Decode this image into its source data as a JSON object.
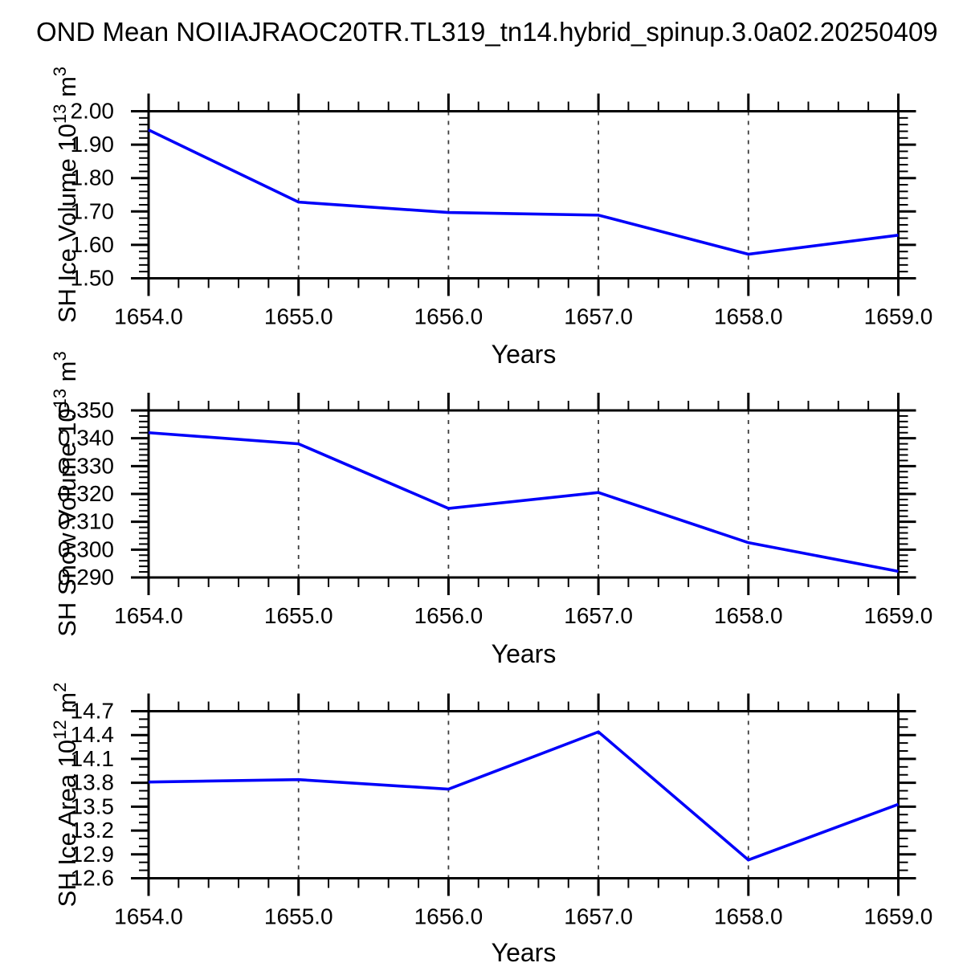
{
  "title": "OND Mean NOIIAJRAOC20TR.TL319_tn14.hybrid_spinup.3.0a02.20250409",
  "xlabel": "Years",
  "colors": {
    "background": "#ffffff",
    "axis": "#000000",
    "grid_dashed": "#3d3d3d",
    "line": "#0000fa"
  },
  "chart_data": [
    {
      "type": "line",
      "title": "",
      "series_name": "SH Ice Volume",
      "ylabel": "SH Ice Volume 10^13 m^3",
      "ylabel_parts": [
        "SH Ice Volume 10",
        "13",
        " m",
        "3"
      ],
      "xlabel": "Years",
      "x": [
        1654.0,
        1655.0,
        1656.0,
        1657.0,
        1658.0,
        1659.0
      ],
      "values": [
        1.944,
        1.728,
        1.697,
        1.689,
        1.572,
        1.629
      ],
      "xlim": [
        1654.0,
        1659.0
      ],
      "ylim": [
        1.5,
        2.0
      ],
      "xmajor": 1.0,
      "xminor": 0.2,
      "ymajor": 0.1,
      "yminor": 0.02,
      "xtick_labels": [
        "1654.0",
        "1655.0",
        "1656.0",
        "1657.0",
        "1658.0",
        "1659.0"
      ],
      "ytick_labels": [
        "2.00",
        "1.90",
        "1.80",
        "1.70",
        "1.60",
        "1.50"
      ],
      "grid": "vertical dashed lines at interior major x ticks",
      "legend": "none"
    },
    {
      "type": "line",
      "title": "",
      "series_name": "SH Snow Volume",
      "ylabel": "SH Snow Volume 10^13 m^3",
      "ylabel_parts": [
        "SH Snow Volume 10",
        "13",
        " m",
        "3"
      ],
      "xlabel": "Years",
      "x": [
        1654.0,
        1655.0,
        1656.0,
        1657.0,
        1658.0,
        1659.0
      ],
      "values": [
        0.342,
        0.338,
        0.3148,
        0.3205,
        0.3025,
        0.2922
      ],
      "xlim": [
        1654.0,
        1659.0
      ],
      "ylim": [
        0.29,
        0.35
      ],
      "xmajor": 1.0,
      "xminor": 0.2,
      "ymajor": 0.01,
      "yminor": 0.002,
      "xtick_labels": [
        "1654.0",
        "1655.0",
        "1656.0",
        "1657.0",
        "1658.0",
        "1659.0"
      ],
      "ytick_labels": [
        "0.350",
        "0.340",
        "0.330",
        "0.320",
        "0.310",
        "0.300",
        "0.290"
      ],
      "grid": "vertical dashed lines at interior major x ticks",
      "legend": "none"
    },
    {
      "type": "line",
      "title": "",
      "series_name": "SH Ice Area",
      "ylabel": "SH Ice Area 10^12 m^2",
      "ylabel_parts": [
        "SH Ice Area 10",
        "12",
        " m",
        "2"
      ],
      "xlabel": "Years",
      "x": [
        1654.0,
        1655.0,
        1656.0,
        1657.0,
        1658.0,
        1659.0
      ],
      "values": [
        13.81,
        13.84,
        13.72,
        14.44,
        12.83,
        13.53
      ],
      "xlim": [
        1654.0,
        1659.0
      ],
      "ylim": [
        12.6,
        14.7
      ],
      "xmajor": 1.0,
      "xminor": 0.2,
      "ymajor": 0.3,
      "yminor": 0.1,
      "xtick_labels": [
        "1654.0",
        "1655.0",
        "1656.0",
        "1657.0",
        "1658.0",
        "1659.0"
      ],
      "ytick_labels": [
        "14.7",
        "14.4",
        "14.1",
        "13.8",
        "13.5",
        "13.2",
        "12.9",
        "12.6"
      ],
      "grid": "vertical dashed lines at interior major x ticks",
      "legend": "none"
    }
  ]
}
